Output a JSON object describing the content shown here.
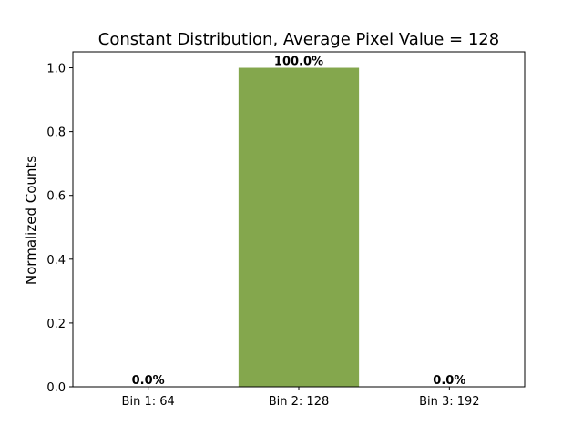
{
  "chart_data": {
    "type": "bar",
    "title": "Constant Distribution, Average Pixel Value = 128",
    "xlabel": "",
    "ylabel": "Normalized Counts",
    "categories": [
      "Bin 1: 64",
      "Bin 2: 128",
      "Bin 3: 192"
    ],
    "values": [
      0.0,
      1.0,
      0.0
    ],
    "data_labels": [
      "0.0%",
      "100.0%",
      "0.0%"
    ],
    "ylim": [
      0,
      1.05
    ],
    "yticks": [
      0.0,
      0.2,
      0.4,
      0.6,
      0.8,
      1.0
    ],
    "ytick_labels": [
      "0.0",
      "0.2",
      "0.4",
      "0.6",
      "0.8",
      "1.0"
    ],
    "bar_color": "#84a74d",
    "grid": false,
    "legend": "none"
  }
}
